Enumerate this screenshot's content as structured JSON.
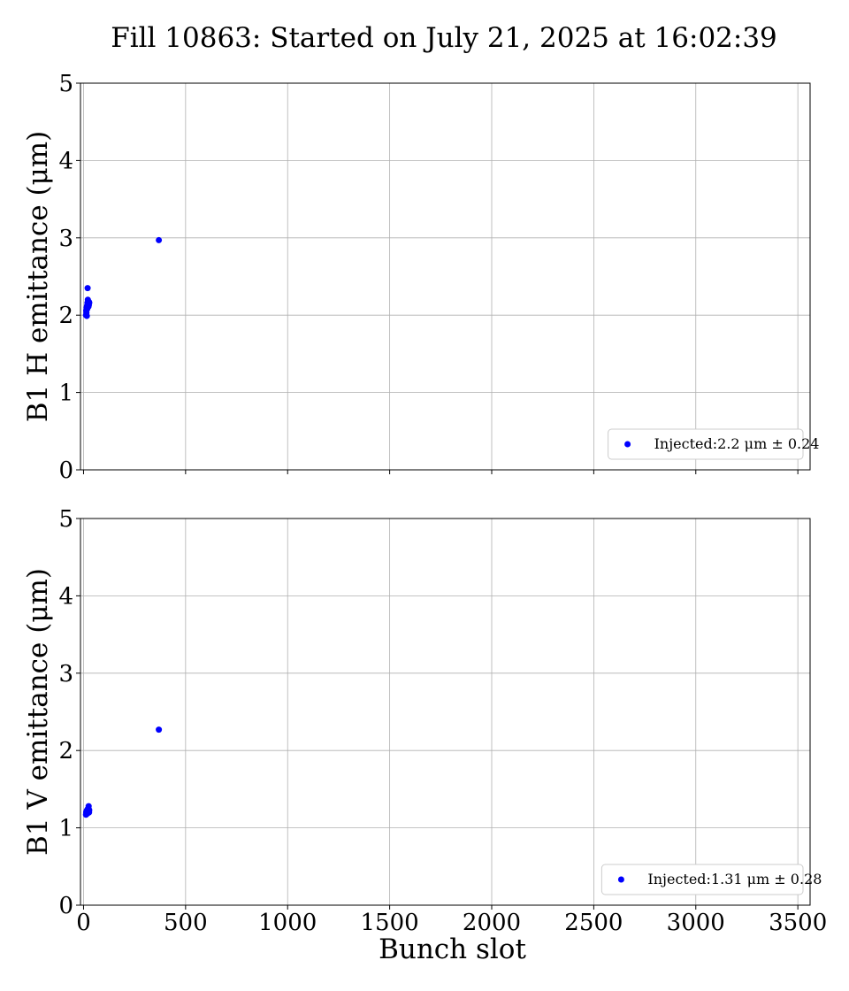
{
  "title": "Fill 10863: Started on July 21, 2025 at 16:02:39",
  "chart_data": [
    {
      "type": "scatter",
      "ylabel": "B1 H emittance (μm)",
      "xlabel": "",
      "xlim": [
        -15,
        3560
      ],
      "ylim": [
        0,
        5
      ],
      "xticks": [
        0,
        500,
        1000,
        1500,
        2000,
        2500,
        3000,
        3500
      ],
      "yticks": [
        0,
        1,
        2,
        3,
        4,
        5
      ],
      "grid": true,
      "show_xtick_labels": false,
      "legend_position": "lower right",
      "series": [
        {
          "name": "Injected:2.2 μm ± 0.24",
          "color": "#0000ff",
          "points": [
            [
              12,
              2.0
            ],
            [
              13,
              2.06
            ],
            [
              14,
              2.03
            ],
            [
              15,
              2.1
            ],
            [
              16,
              1.99
            ],
            [
              17,
              2.12
            ],
            [
              18,
              2.08
            ],
            [
              19,
              2.16
            ],
            [
              20,
              2.35
            ],
            [
              21,
              2.2
            ],
            [
              22,
              2.14
            ],
            [
              23,
              2.18
            ],
            [
              24,
              2.11
            ],
            [
              25,
              2.15
            ],
            [
              26,
              2.13
            ],
            [
              27,
              2.17
            ],
            [
              28,
              2.16
            ],
            [
              369,
              2.97
            ]
          ]
        }
      ]
    },
    {
      "type": "scatter",
      "ylabel": "B1 V emittance (μm)",
      "xlabel": "Bunch slot",
      "xlim": [
        -15,
        3560
      ],
      "ylim": [
        0,
        5
      ],
      "xticks": [
        0,
        500,
        1000,
        1500,
        2000,
        2500,
        3000,
        3500
      ],
      "yticks": [
        0,
        1,
        2,
        3,
        4,
        5
      ],
      "grid": true,
      "show_xtick_labels": true,
      "legend_position": "lower right",
      "series": [
        {
          "name": "Injected:1.31 μm ± 0.28",
          "color": "#0000ff",
          "points": [
            [
              12,
              1.17
            ],
            [
              13,
              1.2
            ],
            [
              14,
              1.19
            ],
            [
              15,
              1.22
            ],
            [
              16,
              1.18
            ],
            [
              17,
              1.21
            ],
            [
              18,
              1.23
            ],
            [
              19,
              1.2
            ],
            [
              20,
              1.24
            ],
            [
              21,
              1.19
            ],
            [
              22,
              1.22
            ],
            [
              23,
              1.25
            ],
            [
              24,
              1.21
            ],
            [
              25,
              1.28
            ],
            [
              26,
              1.22
            ],
            [
              27,
              1.2
            ],
            [
              28,
              1.23
            ],
            [
              369,
              2.27
            ]
          ]
        }
      ]
    }
  ]
}
